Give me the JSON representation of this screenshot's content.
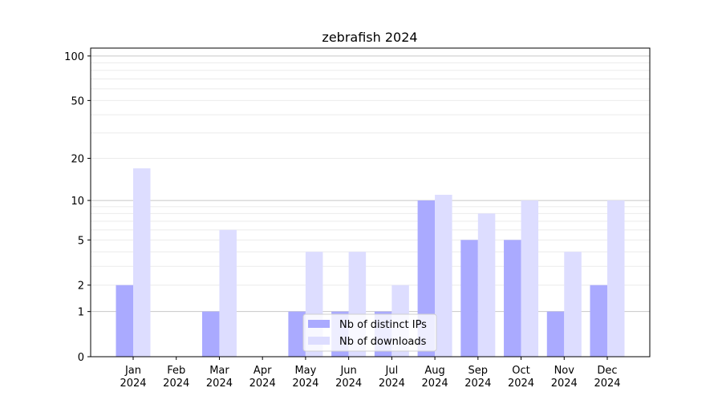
{
  "chart_data": {
    "type": "bar",
    "title": "zebrafish 2024",
    "xlabel": "",
    "ylabel": "",
    "y_scale": "log(y+1)",
    "ylim": [
      0,
      113
    ],
    "y_ticks": [
      0,
      1,
      2,
      5,
      10,
      20,
      50,
      100
    ],
    "y_tick_labels": [
      "0",
      "1",
      "2",
      "5",
      "10",
      "20",
      "50",
      "100"
    ],
    "grid": "horizontal, major at 1/10/100, minor at 2-9 and 20-90",
    "categories": [
      [
        "Jan",
        "2024"
      ],
      [
        "Feb",
        "2024"
      ],
      [
        "Mar",
        "2024"
      ],
      [
        "Apr",
        "2024"
      ],
      [
        "May",
        "2024"
      ],
      [
        "Jun",
        "2024"
      ],
      [
        "Jul",
        "2024"
      ],
      [
        "Aug",
        "2024"
      ],
      [
        "Sep",
        "2024"
      ],
      [
        "Oct",
        "2024"
      ],
      [
        "Nov",
        "2024"
      ],
      [
        "Dec",
        "2024"
      ]
    ],
    "series": [
      {
        "name": "Nb of distinct IPs",
        "color": "#aaaaff",
        "values": [
          2,
          0,
          1,
          0,
          1,
          1,
          1,
          10,
          5,
          5,
          1,
          2
        ]
      },
      {
        "name": "Nb of downloads",
        "color": "#ddddff",
        "values": [
          17,
          0,
          6,
          0,
          4,
          4,
          2,
          11,
          8,
          10,
          4,
          10
        ]
      }
    ],
    "legend": "bottom-center"
  }
}
